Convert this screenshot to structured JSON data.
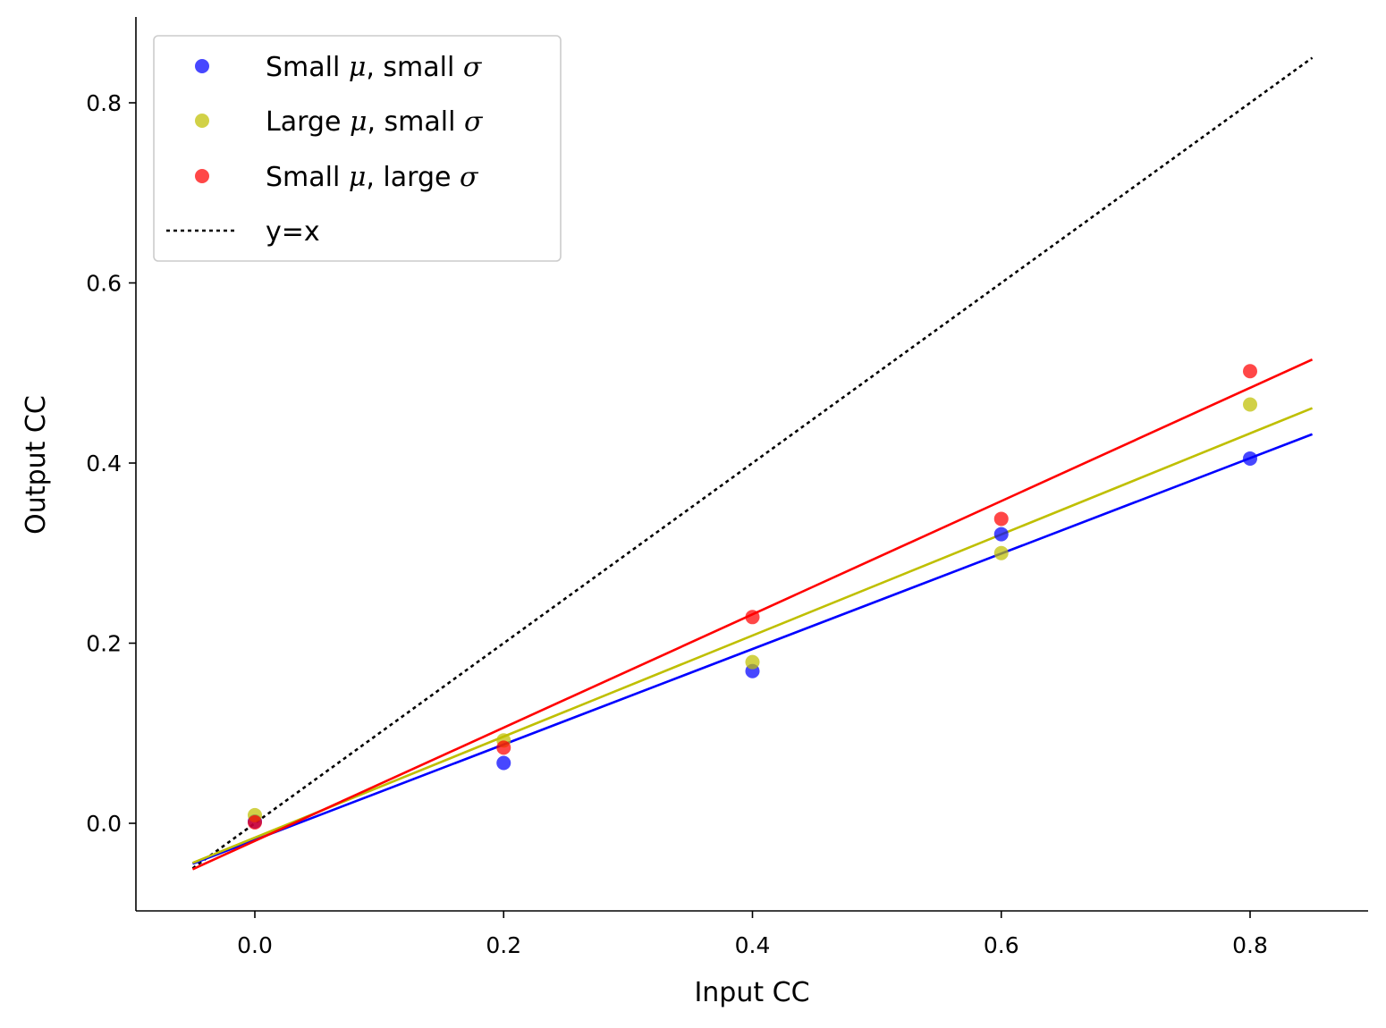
{
  "chart_data": {
    "type": "scatter",
    "xlabel": "Input CC",
    "ylabel": "Output CC",
    "xlim": [
      -0.1,
      0.9
    ],
    "ylim": [
      -0.1,
      0.9
    ],
    "xticks": [
      "0.0",
      "0.2",
      "0.4",
      "0.6",
      "0.8"
    ],
    "yticks": [
      "0.0",
      "0.2",
      "0.4",
      "0.6",
      "0.8"
    ],
    "grid": false,
    "legend_position": "top-left",
    "series": [
      {
        "name": "Small μ, small σ",
        "legend_parts": [
          "Small ",
          "μ",
          ", small ",
          "σ"
        ],
        "color": "#0000ff",
        "x": [
          0.0,
          0.2,
          0.4,
          0.6,
          0.8
        ],
        "y": [
          0.002,
          0.067,
          0.169,
          0.321,
          0.405
        ],
        "fit": {
          "x": [
            -0.05,
            0.85
          ],
          "y": [
            -0.045,
            0.432
          ]
        }
      },
      {
        "name": "Large μ, small σ",
        "legend_parts": [
          "Large ",
          "μ",
          ", small ",
          "σ"
        ],
        "color": "#bfbf00",
        "x": [
          0.0,
          0.2,
          0.4,
          0.6,
          0.8
        ],
        "y": [
          0.009,
          0.092,
          0.179,
          0.3,
          0.465
        ],
        "fit": {
          "x": [
            -0.05,
            0.85
          ],
          "y": [
            -0.044,
            0.461
          ]
        }
      },
      {
        "name": "Small μ, large σ",
        "legend_parts": [
          "Small ",
          "μ",
          ", large ",
          "σ"
        ],
        "color": "#ff0000",
        "x": [
          0.0,
          0.2,
          0.4,
          0.6,
          0.8
        ],
        "y": [
          0.001,
          0.084,
          0.229,
          0.338,
          0.502
        ],
        "fit": {
          "x": [
            -0.05,
            0.85
          ],
          "y": [
            -0.051,
            0.515
          ]
        }
      }
    ],
    "reference_line": {
      "name": "y=x",
      "color": "#000000",
      "x": [
        -0.05,
        0.85
      ],
      "y": [
        -0.05,
        0.85
      ]
    }
  }
}
